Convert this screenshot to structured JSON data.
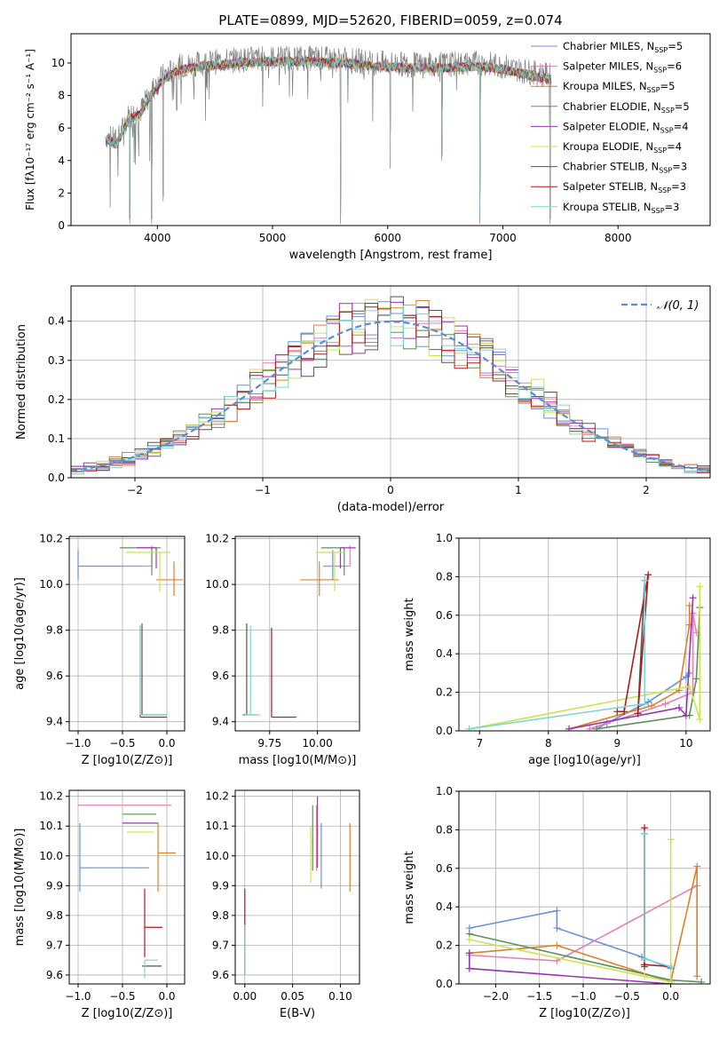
{
  "figure_title": "PLATE=0899, MJD=52620, FIBERID=0059, z=0.074",
  "colors": {
    "Chabrier MILES": "#6a8fdc",
    "Salpeter MILES": "#e67fb8",
    "Kroupa MILES": "#e07f2a",
    "Chabrier ELODIE": "#5e8f5e",
    "Salpeter ELODIE": "#9a35b5",
    "Kroupa ELODIE": "#c8e64c",
    "Chabrier STELIB": "#555555",
    "Salpeter STELIB": "#b01a1a",
    "Kroupa STELIB": "#7fd6d6",
    "spectrum": "#808080",
    "gauss": "#5b8ad8",
    "grid": "#b0b0b0"
  },
  "legend": [
    {
      "name": "Chabrier MILES",
      "text": "Chabrier MILES, N",
      "sub": "SSP",
      "suffix": "=5"
    },
    {
      "name": "Salpeter MILES",
      "text": "Salpeter MILES, N",
      "sub": "SSP",
      "suffix": "=6"
    },
    {
      "name": "Kroupa MILES",
      "text": "Kroupa MILES, N",
      "sub": "SSP",
      "suffix": "=5"
    },
    {
      "name": "Chabrier ELODIE",
      "text": "Chabrier ELODIE, N",
      "sub": "SSP",
      "suffix": "=5"
    },
    {
      "name": "Salpeter ELODIE",
      "text": "Salpeter ELODIE, N",
      "sub": "SSP",
      "suffix": "=4"
    },
    {
      "name": "Kroupa ELODIE",
      "text": "Kroupa ELODIE, N",
      "sub": "SSP",
      "suffix": "=4"
    },
    {
      "name": "Chabrier STELIB",
      "text": "Chabrier STELIB, N",
      "sub": "SSP",
      "suffix": "=3"
    },
    {
      "name": "Salpeter STELIB",
      "text": "Salpeter STELIB, N",
      "sub": "SSP",
      "suffix": "=3"
    },
    {
      "name": "Kroupa STELIB",
      "text": "Kroupa STELIB, N",
      "sub": "SSP",
      "suffix": "=3"
    }
  ],
  "chart_data": [
    {
      "id": "spectrum",
      "type": "line",
      "title": "PLATE=0899, MJD=52620, FIBERID=0059, z=0.074",
      "xlabel": "wavelength [Angstrom, rest frame]",
      "ylabel": "Flux [fλ10⁻¹⁷ erg cm⁻² s⁻¹ A⁻¹]",
      "xlim": [
        3250,
        8800
      ],
      "ylim": [
        0,
        11.8
      ],
      "xticks": [
        4000,
        5000,
        6000,
        7000,
        8000
      ],
      "yticks": [
        0,
        2,
        4,
        6,
        8,
        10
      ],
      "grid": false,
      "legend_position": "right",
      "continuum": [
        [
          3550,
          5.5
        ],
        [
          3650,
          5.2
        ],
        [
          3750,
          6.8
        ],
        [
          3850,
          7.0
        ],
        [
          3950,
          8.3
        ],
        [
          4050,
          9.2
        ],
        [
          4200,
          9.8
        ],
        [
          4400,
          10.0
        ],
        [
          4700,
          10.2
        ],
        [
          5000,
          10.3
        ],
        [
          5300,
          10.3
        ],
        [
          5600,
          10.2
        ],
        [
          5900,
          10.0
        ],
        [
          6200,
          9.9
        ],
        [
          6500,
          9.9
        ],
        [
          6800,
          10.0
        ],
        [
          7000,
          9.8
        ],
        [
          7200,
          9.5
        ],
        [
          7420,
          9.2
        ]
      ],
      "dips": [
        [
          3760,
          0.1
        ],
        [
          3950,
          0.1
        ],
        [
          4050,
          1.5
        ],
        [
          5590,
          0.1
        ],
        [
          6020,
          3.5
        ],
        [
          6470,
          4.0
        ],
        [
          6800,
          0.1
        ],
        [
          7410,
          0.1
        ]
      ]
    },
    {
      "id": "residuals",
      "type": "histogram",
      "xlabel": "(data-model)/error",
      "ylabel": "Normed distribution",
      "xlim": [
        -2.5,
        2.5
      ],
      "ylim": [
        0,
        0.49
      ],
      "xticks": [
        -2,
        -1,
        0,
        1,
        2
      ],
      "yticks": [
        0.0,
        0.1,
        0.2,
        0.3,
        0.4
      ],
      "grid": true,
      "bin_width": 0.1,
      "legend": {
        "label": "N(0,1)",
        "position": "top-right"
      }
    },
    {
      "id": "age-vs-Z",
      "type": "errorbar",
      "xlabel": "Z [log10(Z/Z⊙)]",
      "ylabel": "age  [log10(age/yr)]",
      "xlim": [
        -1.1,
        0.2
      ],
      "ylim": [
        9.36,
        10.21
      ],
      "xticks": [
        -1.0,
        -0.5,
        0.0
      ],
      "yticks": [
        9.4,
        9.6,
        9.8,
        10.0,
        10.2
      ],
      "grid": true,
      "points": [
        {
          "model": "Chabrier MILES",
          "x": -1.0,
          "xerr": [
            0.0,
            0.72
          ],
          "y": 10.08,
          "yerr": [
            0.06,
            0.07
          ]
        },
        {
          "model": "Salpeter MILES",
          "x": -0.17,
          "xerr": [
            0.34,
            0.0
          ],
          "y": 10.08,
          "yerr": [
            0.0,
            0.09
          ]
        },
        {
          "model": "Kroupa MILES",
          "x": 0.08,
          "xerr": [
            0.2,
            0.1
          ],
          "y": 10.02,
          "yerr": [
            0.07,
            0.08
          ]
        },
        {
          "model": "Chabrier ELODIE",
          "x": -0.17,
          "xerr": [
            0.36,
            0.1
          ],
          "y": 10.16,
          "yerr": [
            0.12,
            0.0
          ]
        },
        {
          "model": "Salpeter ELODIE",
          "x": -0.12,
          "xerr": [
            0.22,
            0.0
          ],
          "y": 10.16,
          "yerr": [
            0.09,
            0.0
          ]
        },
        {
          "model": "Kroupa ELODIE",
          "x": -0.08,
          "xerr": [
            0.38,
            0.12
          ],
          "y": 10.14,
          "yerr": [
            0.17,
            0.0
          ]
        },
        {
          "model": "Chabrier STELIB",
          "x": -0.28,
          "xerr": [
            0.0,
            0.28
          ],
          "y": 9.43,
          "yerr": [
            0.0,
            0.4
          ]
        },
        {
          "model": "Salpeter STELIB",
          "x": -0.3,
          "xerr": [
            0.0,
            0.3
          ],
          "y": 9.42,
          "yerr": [
            0.0,
            0.4
          ]
        },
        {
          "model": "Kroupa STELIB",
          "x": -0.3,
          "xerr": [
            0.0,
            0.3
          ],
          "y": 9.43,
          "yerr": [
            0.0,
            0.39
          ]
        }
      ]
    },
    {
      "id": "age-vs-mass",
      "type": "errorbar",
      "xlabel": "mass [log10(M/M⊙)]",
      "ylabel": "",
      "xlim": [
        9.57,
        10.22
      ],
      "ylim": [
        9.36,
        10.21
      ],
      "xticks": [
        9.75,
        10.0
      ],
      "yticks": [
        9.4,
        9.6,
        9.8,
        10.0,
        10.2
      ],
      "grid": true,
      "points": [
        {
          "model": "Chabrier MILES",
          "x": 10.08,
          "xerr": [
            0.05,
            0.05
          ],
          "y": 10.08,
          "yerr": [
            0.06,
            0.07
          ]
        },
        {
          "model": "Salpeter MILES",
          "x": 10.17,
          "xerr": [
            0.14,
            0.0
          ],
          "y": 10.08,
          "yerr": [
            0.0,
            0.09
          ]
        },
        {
          "model": "Kroupa MILES",
          "x": 10.01,
          "xerr": [
            0.1,
            0.1
          ],
          "y": 10.02,
          "yerr": [
            0.07,
            0.08
          ]
        },
        {
          "model": "Chabrier ELODIE",
          "x": 10.14,
          "xerr": [
            0.12,
            0.0
          ],
          "y": 10.16,
          "yerr": [
            0.12,
            0.0
          ]
        },
        {
          "model": "Salpeter ELODIE",
          "x": 10.12,
          "xerr": [
            0.0,
            0.08
          ],
          "y": 10.16,
          "yerr": [
            0.09,
            0.0
          ]
        },
        {
          "model": "Kroupa ELODIE",
          "x": 10.09,
          "xerr": [
            0.1,
            0.05
          ],
          "y": 10.14,
          "yerr": [
            0.17,
            0.0
          ]
        },
        {
          "model": "Chabrier STELIB",
          "x": 9.63,
          "xerr": [
            0.02,
            0.05
          ],
          "y": 9.43,
          "yerr": [
            0.0,
            0.4
          ]
        },
        {
          "model": "Salpeter STELIB",
          "x": 9.76,
          "xerr": [
            0.0,
            0.13
          ],
          "y": 9.42,
          "yerr": [
            0.0,
            0.39
          ]
        },
        {
          "model": "Kroupa STELIB",
          "x": 9.65,
          "xerr": [
            0.03,
            0.05
          ],
          "y": 9.43,
          "yerr": [
            0.0,
            0.39
          ]
        }
      ]
    },
    {
      "id": "mass-weight-vs-age",
      "type": "line",
      "xlabel": "age  [log10(age/yr)]",
      "ylabel": "mass weight",
      "xlim": [
        6.7,
        10.35
      ],
      "ylim": [
        0,
        1.0
      ],
      "xticks": [
        7,
        8,
        9,
        10
      ],
      "yticks": [
        0.0,
        0.2,
        0.4,
        0.6,
        0.8,
        1.0
      ],
      "grid": true,
      "series": [
        {
          "model": "Chabrier MILES",
          "x": [
            8.7,
            8.85,
            9.45,
            10.0,
            10.05
          ],
          "y": [
            0.01,
            0.04,
            0.15,
            0.28,
            0.3
          ]
        },
        {
          "model": "Salpeter MILES",
          "x": [
            8.6,
            9.7,
            10.1,
            10.1,
            10.15
          ],
          "y": [
            0.01,
            0.14,
            0.2,
            0.61,
            0.51
          ]
        },
        {
          "model": "Kroupa MILES",
          "x": [
            8.3,
            9.5,
            9.9,
            10.05,
            10.05
          ],
          "y": [
            0.01,
            0.13,
            0.21,
            0.55,
            0.65
          ]
        },
        {
          "model": "Chabrier ELODIE",
          "x": [
            8.7,
            10.05,
            10.15,
            10.2
          ],
          "y": [
            0.01,
            0.08,
            0.27,
            0.64
          ]
        },
        {
          "model": "Salpeter ELODIE",
          "x": [
            8.3,
            9.9,
            10.0,
            10.1
          ],
          "y": [
            0.01,
            0.12,
            0.08,
            0.69
          ]
        },
        {
          "model": "Kroupa ELODIE",
          "x": [
            6.85,
            10.05,
            10.2,
            10.2
          ],
          "y": [
            0.01,
            0.23,
            0.06,
            0.75
          ]
        },
        {
          "model": "Chabrier STELIB",
          "x": [
            9.4,
            9.3
          ],
          "y": [
            0.78,
            0.09
          ]
        },
        {
          "model": "Salpeter STELIB",
          "x": [
            9.3,
            9.45,
            9.1,
            9.0
          ],
          "y": [
            0.09,
            0.81,
            0.1,
            0.1
          ]
        },
        {
          "model": "Kroupa STELIB",
          "x": [
            6.85,
            9.4,
            9.4
          ],
          "y": [
            0.01,
            0.14,
            0.78
          ]
        }
      ]
    },
    {
      "id": "mass-vs-Z",
      "type": "errorbar",
      "xlabel": "Z [log10(Z/Z⊙)]",
      "ylabel": "mass [log10(M/M⊙)]",
      "xlim": [
        -1.1,
        0.2
      ],
      "ylim": [
        9.57,
        10.22
      ],
      "xticks": [
        -1.0,
        -0.5,
        0.0
      ],
      "yticks": [
        9.6,
        9.7,
        9.8,
        9.9,
        10.0,
        10.1,
        10.2
      ],
      "grid": true,
      "points": [
        {
          "model": "Chabrier MILES",
          "x": -0.98,
          "xerr": [
            0.0,
            0.78
          ],
          "y": 9.96,
          "yerr": [
            0.08,
            0.15
          ]
        },
        {
          "model": "Salpeter MILES",
          "x": -1.0,
          "xerr": [
            0.0,
            1.05
          ],
          "y": 10.17,
          "yerr": [
            0.0,
            0.0
          ]
        },
        {
          "model": "Kroupa MILES",
          "x": -0.1,
          "xerr": [
            0.0,
            0.2
          ],
          "y": 10.01,
          "yerr": [
            0.13,
            0.1
          ]
        },
        {
          "model": "Chabrier ELODIE",
          "x": -0.5,
          "xerr": [
            0.0,
            0.38
          ],
          "y": 10.14,
          "yerr": [
            0.0,
            0.0
          ]
        },
        {
          "model": "Salpeter ELODIE",
          "x": -0.5,
          "xerr": [
            0.0,
            0.4
          ],
          "y": 10.11,
          "yerr": [
            0.0,
            0.0
          ]
        },
        {
          "model": "Kroupa ELODIE",
          "x": -0.45,
          "xerr": [
            0.0,
            0.3
          ],
          "y": 10.08,
          "yerr": [
            0.0,
            0.0
          ]
        },
        {
          "model": "Chabrier STELIB",
          "x": -0.28,
          "xerr": [
            0.0,
            0.22
          ],
          "y": 9.63,
          "yerr": [
            0.0,
            0.0
          ]
        },
        {
          "model": "Salpeter STELIB",
          "x": -0.25,
          "xerr": [
            0.0,
            0.2
          ],
          "y": 9.76,
          "yerr": [
            0.1,
            0.13
          ]
        },
        {
          "model": "Kroupa STELIB",
          "x": -0.25,
          "xerr": [
            0.0,
            0.15
          ],
          "y": 9.65,
          "yerr": [
            0.06,
            0.0
          ]
        }
      ]
    },
    {
      "id": "mass-vs-EBV",
      "type": "errorbar",
      "xlabel": "E(B-V)",
      "ylabel": "",
      "xlim": [
        -0.01,
        0.12
      ],
      "ylim": [
        9.57,
        10.22
      ],
      "xticks": [
        0.0,
        0.05,
        0.1
      ],
      "yticks": [
        9.6,
        9.7,
        9.8,
        9.9,
        10.0,
        10.1,
        10.2
      ],
      "grid": true,
      "points": [
        {
          "model": "Chabrier MILES",
          "x": 0.08,
          "y": 10.0,
          "yerr": [
            0.11,
            0.11
          ]
        },
        {
          "model": "Salpeter MILES",
          "x": 0.075,
          "y": 10.05,
          "yerr": [
            0.1,
            0.12
          ]
        },
        {
          "model": "Kroupa MILES",
          "x": 0.11,
          "y": 10.0,
          "yerr": [
            0.12,
            0.11
          ]
        },
        {
          "model": "Chabrier ELODIE",
          "x": 0.071,
          "y": 10.05,
          "yerr": [
            0.1,
            0.12
          ]
        },
        {
          "model": "Salpeter ELODIE",
          "x": 0.076,
          "y": 10.08,
          "yerr": [
            0.12,
            0.12
          ]
        },
        {
          "model": "Kroupa ELODIE",
          "x": 0.069,
          "y": 10.0,
          "yerr": [
            0.09,
            0.1
          ]
        },
        {
          "model": "Chabrier STELIB",
          "x": 0.0,
          "y": 9.7,
          "yerr": [
            0.1,
            0.07
          ]
        },
        {
          "model": "Salpeter STELIB",
          "x": 0.0,
          "y": 9.77,
          "yerr": [
            0.03,
            0.12
          ]
        },
        {
          "model": "Kroupa STELIB",
          "x": 0.0,
          "y": 9.68,
          "yerr": [
            0.08,
            0.09
          ]
        }
      ]
    },
    {
      "id": "mass-weight-vs-Z",
      "type": "line",
      "xlabel": "Z [log10(Z/Z⊙)]",
      "ylabel": "mass weight",
      "xlim": [
        -2.42,
        0.45
      ],
      "ylim": [
        0,
        1.0
      ],
      "xticks": [
        -2.0,
        -1.5,
        -1.0,
        -0.5,
        0.0
      ],
      "yticks": [
        0.0,
        0.2,
        0.4,
        0.6,
        0.8,
        1.0
      ],
      "grid": true,
      "series": [
        {
          "model": "Chabrier MILES",
          "x": [
            -2.3,
            -1.3,
            -1.3,
            -0.33,
            0.0
          ],
          "y": [
            0.29,
            0.38,
            0.29,
            0.14,
            0.08
          ]
        },
        {
          "model": "Salpeter MILES",
          "x": [
            -2.3,
            -1.3,
            0.3
          ],
          "y": [
            0.15,
            0.12,
            0.51
          ]
        },
        {
          "model": "Kroupa MILES",
          "x": [
            -2.3,
            -1.3,
            0.0,
            0.3,
            0.3
          ],
          "y": [
            0.16,
            0.2,
            0.01,
            0.61,
            0.04
          ]
        },
        {
          "model": "Chabrier ELODIE",
          "x": [
            -2.3,
            0.0,
            0.35
          ],
          "y": [
            0.26,
            0.02,
            0.01
          ]
        },
        {
          "model": "Salpeter ELODIE",
          "x": [
            -2.3,
            -2.3,
            0.0
          ],
          "y": [
            0.16,
            0.08,
            0.0
          ]
        },
        {
          "model": "Kroupa ELODIE",
          "x": [
            -2.3,
            -0.3,
            0.0,
            0.0
          ],
          "y": [
            0.23,
            0.04,
            0.01,
            0.75
          ]
        },
        {
          "model": "Chabrier STELIB",
          "x": [
            -0.3,
            -0.3
          ],
          "y": [
            0.78,
            0.09
          ]
        },
        {
          "model": "Salpeter STELIB",
          "x": [
            -0.3,
            -0.3,
            0.0
          ],
          "y": [
            0.81,
            0.1,
            0.09
          ]
        },
        {
          "model": "Kroupa STELIB",
          "x": [
            -0.3,
            -0.3,
            0.0
          ],
          "y": [
            0.78,
            0.13,
            0.09
          ]
        }
      ]
    }
  ]
}
